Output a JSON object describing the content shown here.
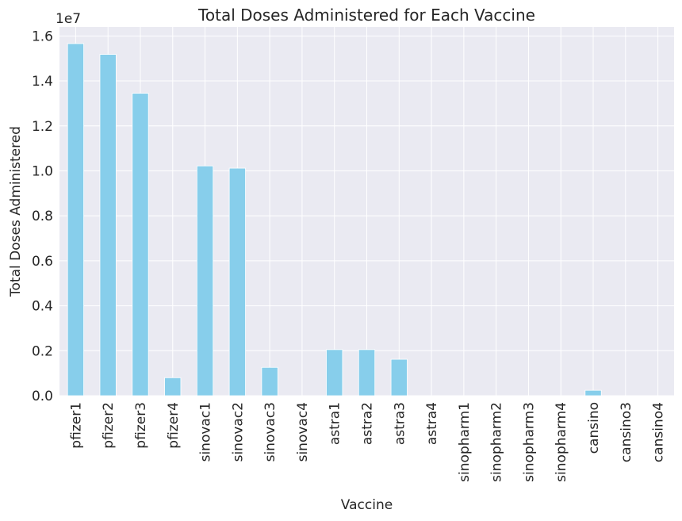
{
  "chart_data": {
    "type": "bar",
    "title": "Total Doses Administered for Each Vaccine",
    "xlabel": "Vaccine",
    "ylabel": "Total Doses Administered",
    "offset_label": "1e7",
    "ylim": [
      0,
      1.64
    ],
    "y_ticks": [
      0.0,
      0.2,
      0.4,
      0.6,
      0.8,
      1.0,
      1.2,
      1.4,
      1.6
    ],
    "y_tick_labels": [
      "0.0",
      "0.2",
      "0.4",
      "0.6",
      "0.8",
      "1.0",
      "1.2",
      "1.4",
      "1.6"
    ],
    "grid": true,
    "bar_color": "#87ceeb",
    "background_color": "#eaeaf2",
    "categories": [
      "pfizer1",
      "pfizer2",
      "pfizer3",
      "pfizer4",
      "sinovac1",
      "sinovac2",
      "sinovac3",
      "sinovac4",
      "astra1",
      "astra2",
      "astra3",
      "astra4",
      "sinopharm1",
      "sinopharm2",
      "sinopharm3",
      "sinopharm4",
      "cansino",
      "cansino3",
      "cansino4"
    ],
    "values": [
      1.566,
      1.518,
      1.345,
      0.08,
      1.022,
      1.012,
      0.126,
      0.0,
      0.205,
      0.205,
      0.162,
      0.0,
      0.0,
      0.0,
      0.0,
      0.0,
      0.024,
      0.0,
      0.0
    ]
  }
}
